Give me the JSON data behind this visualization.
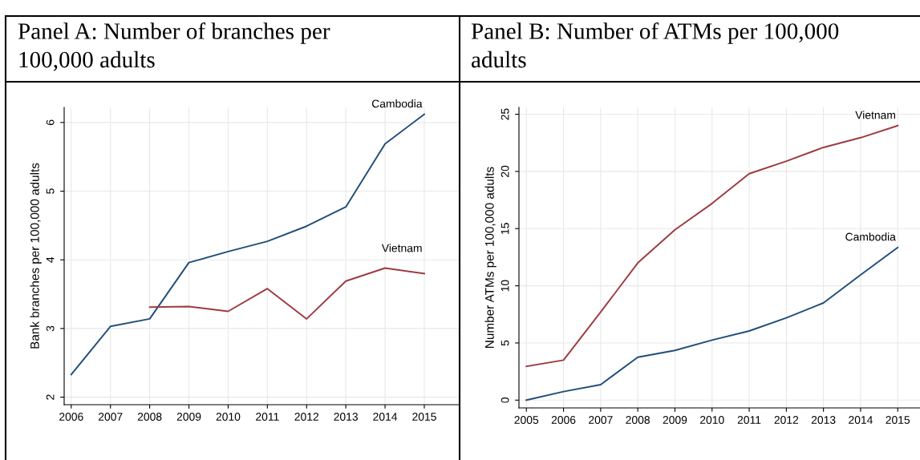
{
  "chart_data": [
    {
      "type": "line",
      "title": "Panel A: Number of branches per\n100,000 adults",
      "ylabel": "Bank branches per 100,000 adults",
      "grid": true,
      "legend": false,
      "xlim": [
        2005.82,
        2015.9
      ],
      "xticks": [
        2006,
        2007,
        2008,
        2009,
        2010,
        2011,
        2012,
        2013,
        2014,
        2015
      ],
      "ylim": [
        1.89,
        6.22
      ],
      "yticks": [
        2,
        3,
        4,
        5,
        6
      ],
      "series": [
        {
          "name": "Cambodia",
          "color": "#1f4e79",
          "x": [
            2006,
            2007,
            2008,
            2009,
            2010,
            2011,
            2012,
            2013,
            2014,
            2015
          ],
          "values": [
            2.33,
            3.03,
            3.14,
            3.96,
            4.12,
            4.27,
            4.49,
            4.77,
            5.69,
            6.12
          ]
        },
        {
          "name": "Vietnam",
          "color": "#9e3a40",
          "x": [
            2008,
            2009,
            2010,
            2011,
            2012,
            2013,
            2014,
            2015
          ],
          "values": [
            3.31,
            3.32,
            3.25,
            3.58,
            3.14,
            3.69,
            3.88,
            3.8
          ]
        }
      ]
    },
    {
      "type": "line",
      "title": "Panel B: Number of ATMs per 100,000\nadults",
      "ylabel": "Number ATMs per 100,000 adults",
      "grid": true,
      "legend": false,
      "xlim": [
        2004.8,
        2015.6
      ],
      "xticks": [
        2005,
        2006,
        2007,
        2008,
        2009,
        2010,
        2011,
        2012,
        2013,
        2014,
        2015
      ],
      "ylim": [
        -0.68,
        25.6
      ],
      "yticks": [
        0,
        5,
        10,
        15,
        20,
        25
      ],
      "series": [
        {
          "name": "Vietnam",
          "color": "#9e3a40",
          "x": [
            2005,
            2006,
            2007,
            2008,
            2009,
            2010,
            2011,
            2012,
            2013,
            2014,
            2015
          ],
          "values": [
            2.95,
            3.5,
            7.7,
            12.0,
            14.9,
            17.2,
            19.8,
            20.9,
            22.1,
            22.95,
            24.0
          ]
        },
        {
          "name": "Cambodia",
          "color": "#1f4e79",
          "x": [
            2005,
            2006,
            2007,
            2008,
            2009,
            2010,
            2011,
            2012,
            2013,
            2014,
            2015
          ],
          "values": [
            0,
            0.75,
            1.35,
            3.75,
            4.35,
            5.25,
            6.05,
            7.2,
            8.5,
            10.95,
            13.35
          ]
        }
      ]
    }
  ]
}
